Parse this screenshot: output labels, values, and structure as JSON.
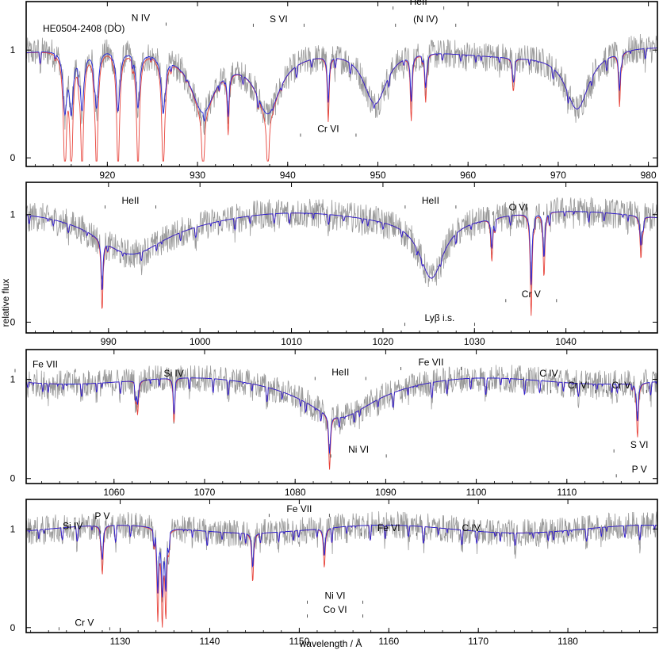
{
  "chart_data": {
    "type": "line",
    "title": "HE0504-2408 (DO)",
    "xlabel": "wavelength / Å",
    "ylabel": "relative flux",
    "colors": {
      "observed": "#9a9a9a",
      "model_red": "#e8433a",
      "model_blue": "#2323d9"
    },
    "panels": [
      {
        "xlim": [
          911,
          981
        ],
        "ylim": [
          -0.08,
          1.45
        ],
        "xticks": [
          920,
          930,
          940,
          950,
          960,
          970,
          980
        ],
        "yticks": [
          0,
          1
        ],
        "hei_lines": [
          915.3,
          916.0,
          917.2,
          918.8,
          921.2,
          923.4,
          926.2,
          930.6,
          937.8,
          949.7,
          972.1
        ],
        "hei_depths": [
          0.98,
          0.98,
          0.98,
          0.98,
          0.97,
          0.95,
          0.95,
          0.95,
          0.95,
          0.95,
          0.98
        ],
        "abs_lines": [
          [
            933.4,
            0.55
          ],
          [
            944.5,
            0.6
          ],
          [
            953.7,
            0.6
          ],
          [
            955.3,
            0.45
          ],
          [
            965,
            0.3
          ],
          [
            976.8,
            0.5
          ]
        ],
        "annotations": [
          {
            "text": "N IV",
            "x": 923.7,
            "y": 1.27
          },
          {
            "text": "HeII",
            "x": 954.5,
            "y": 1.42
          },
          {
            "text": "S VI",
            "x": 939.0,
            "y": 1.26
          },
          {
            "text": "(N IV)",
            "x": 955.3,
            "y": 1.26
          },
          {
            "text": "Cr VI",
            "x": 944.5,
            "y": 0.24
          }
        ]
      },
      {
        "xlim": [
          981,
          1050
        ],
        "ylim": [
          -0.1,
          1.3
        ],
        "xticks": [
          990,
          1000,
          1010,
          1020,
          1030,
          1040
        ],
        "yticks": [
          0,
          1
        ],
        "hei_lines": [
          992.4,
          1025.3
        ],
        "hei_depths": [
          0.6,
          0.99
        ],
        "abs_lines": [
          [
            989.3,
            0.6
          ],
          [
            1031.9,
            0.4
          ],
          [
            1036.2,
            0.95
          ],
          [
            1037.6,
            0.6
          ],
          [
            1048.2,
            0.4
          ]
        ],
        "annotations": [
          {
            "text": "HeII",
            "x": 992.4,
            "y": 1.1
          },
          {
            "text": "HeII",
            "x": 1025.2,
            "y": 1.1
          },
          {
            "text": "O VI",
            "x": 1034.8,
            "y": 1.04
          },
          {
            "text": "Cr V",
            "x": 1036.2,
            "y": 0.23
          },
          {
            "text": "Lyβ i.s.",
            "x": 1026.2,
            "y": 0.01
          }
        ]
      },
      {
        "xlim": [
          1050.3,
          1120
        ],
        "ylim": [
          -0.05,
          1.3
        ],
        "xticks": [
          1060,
          1070,
          1080,
          1090,
          1100,
          1110
        ],
        "yticks": [
          0,
          1
        ],
        "hei_lines": [
          1084.9
        ],
        "hei_depths": [
          0.62
        ],
        "abs_lines": [
          [
            1062.6,
            0.35
          ],
          [
            1066.6,
            0.3
          ],
          [
            1083.8,
            0.55
          ],
          [
            1117.8,
            0.55
          ]
        ],
        "annotations": [
          {
            "text": "Fe VII",
            "x": 1052.4,
            "y": 1.12
          },
          {
            "text": "Si IV",
            "x": 1066.6,
            "y": 1.03
          },
          {
            "text": "HeII",
            "x": 1085.0,
            "y": 1.04
          },
          {
            "text": "Fe VII",
            "x": 1095.0,
            "y": 1.14
          },
          {
            "text": "C IV",
            "x": 1108.0,
            "y": 1.03
          },
          {
            "text": "Cr VI",
            "x": 1111.3,
            "y": 0.91
          },
          {
            "text": "Cr V",
            "x": 1116.0,
            "y": 0.91
          },
          {
            "text": "Ni VI",
            "x": 1087.0,
            "y": 0.26
          },
          {
            "text": "S VI",
            "x": 1118.0,
            "y": 0.31
          },
          {
            "text": "P V",
            "x": 1118.0,
            "y": 0.06
          }
        ]
      },
      {
        "xlim": [
          1119.5,
          1190
        ],
        "ylim": [
          -0.05,
          1.3
        ],
        "xticks": [
          1130,
          1140,
          1150,
          1160,
          1170,
          1180
        ],
        "yticks": [
          0,
          1
        ],
        "hei_lines": [],
        "hei_depths": [],
        "abs_lines": [
          [
            1134.2,
            0.9
          ],
          [
            1134.7,
            0.9
          ],
          [
            1135.1,
            0.85
          ],
          [
            1144.8,
            0.5
          ],
          [
            1152.8,
            0.4
          ],
          [
            1128.0,
            0.5
          ]
        ],
        "annotations": [
          {
            "text": "Si IV",
            "x": 1124.7,
            "y": 1.0
          },
          {
            "text": "P V",
            "x": 1128.0,
            "y": 1.1
          },
          {
            "text": "Fe VII",
            "x": 1150.0,
            "y": 1.17
          },
          {
            "text": "Fe VI",
            "x": 1160.0,
            "y": 0.98
          },
          {
            "text": "C IV",
            "x": 1169.2,
            "y": 0.98
          },
          {
            "text": "Ni VI",
            "x": 1154.0,
            "y": 0.29
          },
          {
            "text": "Co VI",
            "x": 1154.0,
            "y": 0.15
          },
          {
            "text": "Cr V",
            "x": 1126.0,
            "y": 0.02
          }
        ]
      }
    ]
  }
}
